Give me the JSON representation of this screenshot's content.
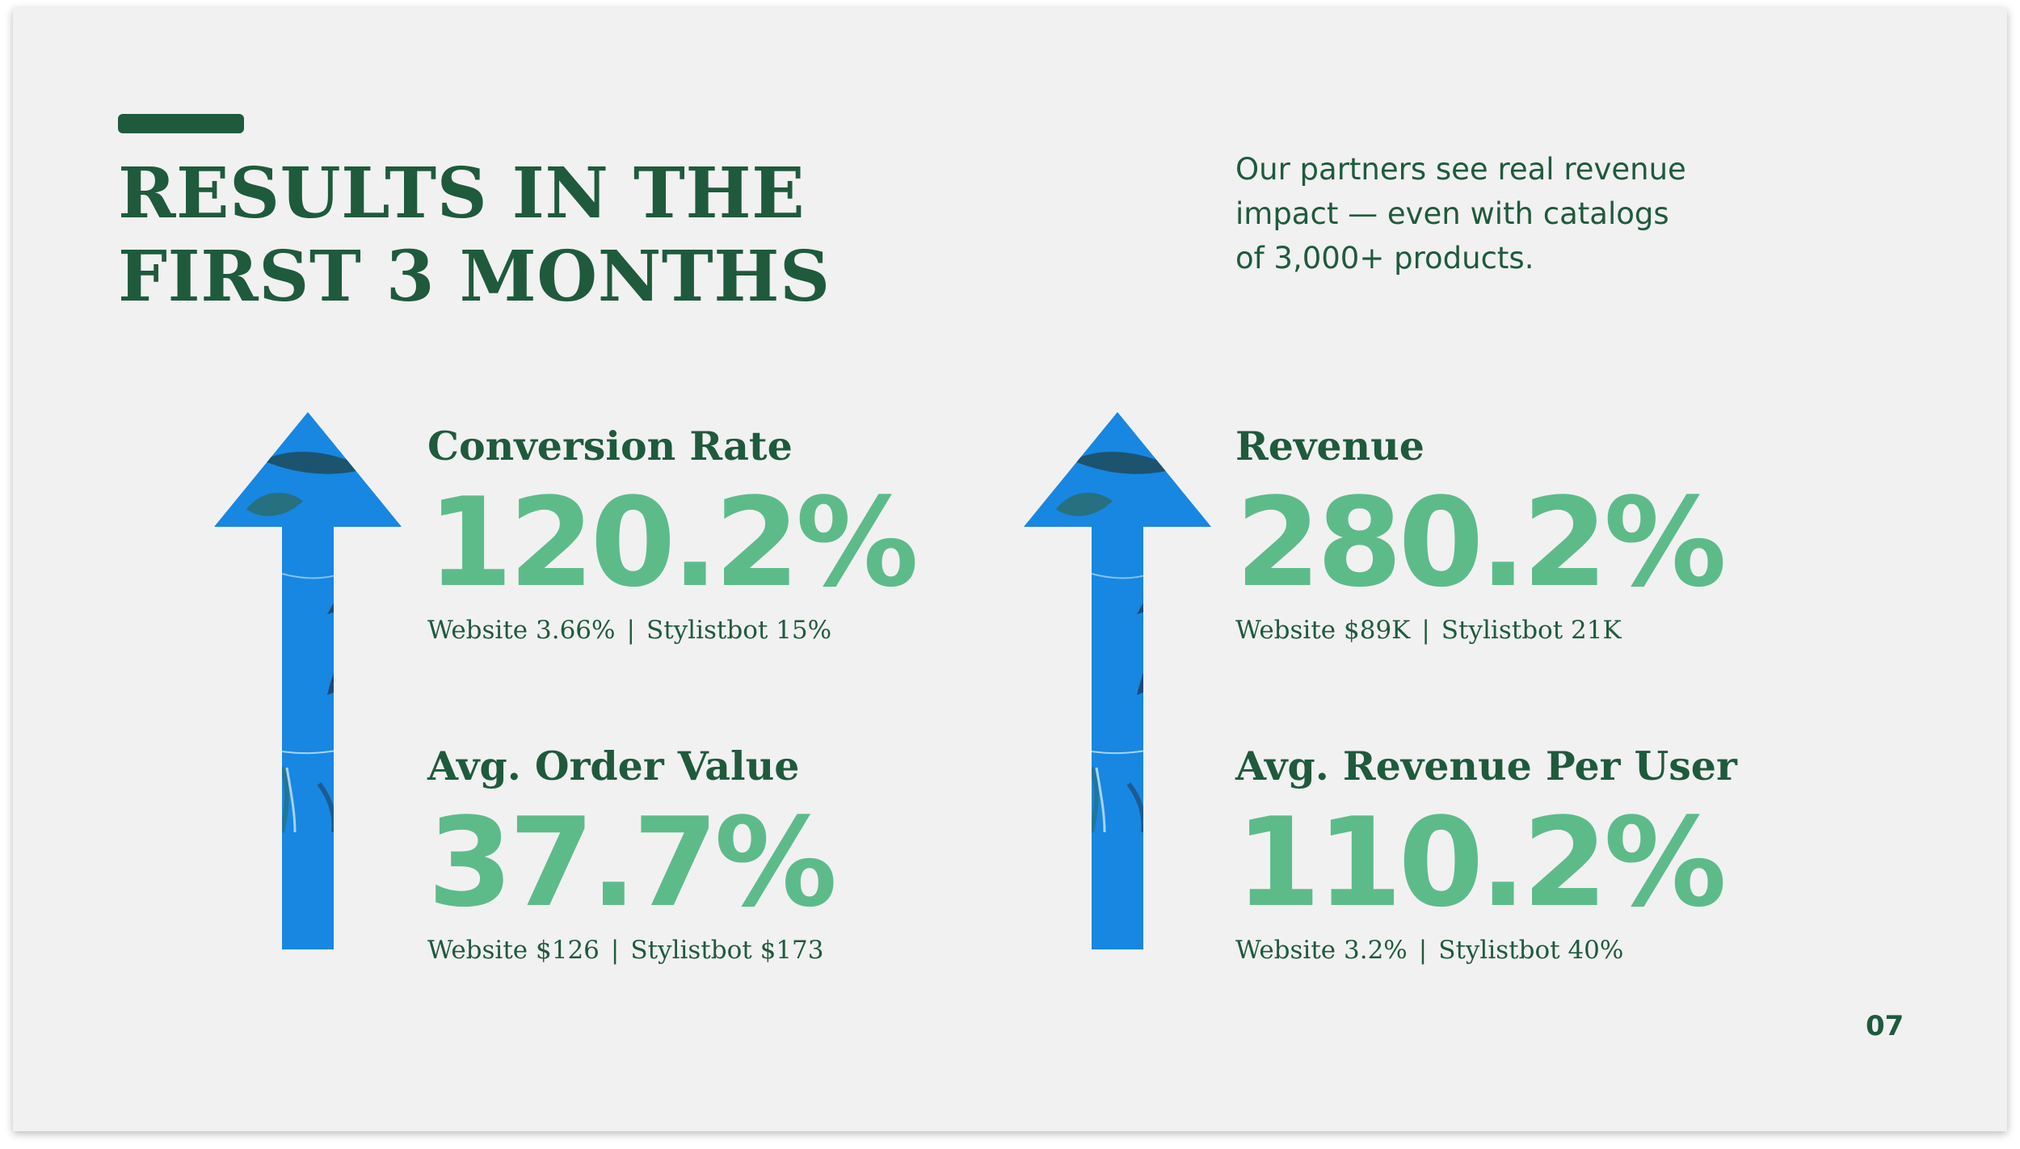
{
  "slide": {
    "title_lines": [
      "RESULTS IN THE",
      "FIRST 3 MONTHS"
    ],
    "intro_lines": [
      "Our partners see real revenue",
      "impact — even with catalogs",
      "of 3,000+ products."
    ],
    "page_number": "07",
    "colors": {
      "primary": "#1f5a3c",
      "accent": "#5dbb8a",
      "background": "#f1f1f1",
      "arrow_blue": "#1a8be6"
    }
  },
  "arrows": [
    {
      "icon": "up-arrow-icon"
    },
    {
      "icon": "up-arrow-icon"
    }
  ],
  "metrics": {
    "conversion_rate": {
      "label": "Conversion Rate",
      "value": "120.2%",
      "website": "Website 3.66%",
      "separator": "|",
      "stylistbot": "Stylistbot 15%"
    },
    "avg_order_value": {
      "label": "Avg. Order Value",
      "value": "37.7%",
      "website": "Website $126",
      "separator": "|",
      "stylistbot": "Stylistbot $173"
    },
    "revenue": {
      "label": "Revenue",
      "value": "280.2%",
      "website": "Website $89K",
      "separator": "|",
      "stylistbot": "Stylistbot 21K"
    },
    "avg_revenue_per_user": {
      "label": "Avg. Revenue Per User",
      "value": "110.2%",
      "website": "Website 3.2%",
      "separator": "|",
      "stylistbot": "Stylistbot 40%"
    }
  }
}
